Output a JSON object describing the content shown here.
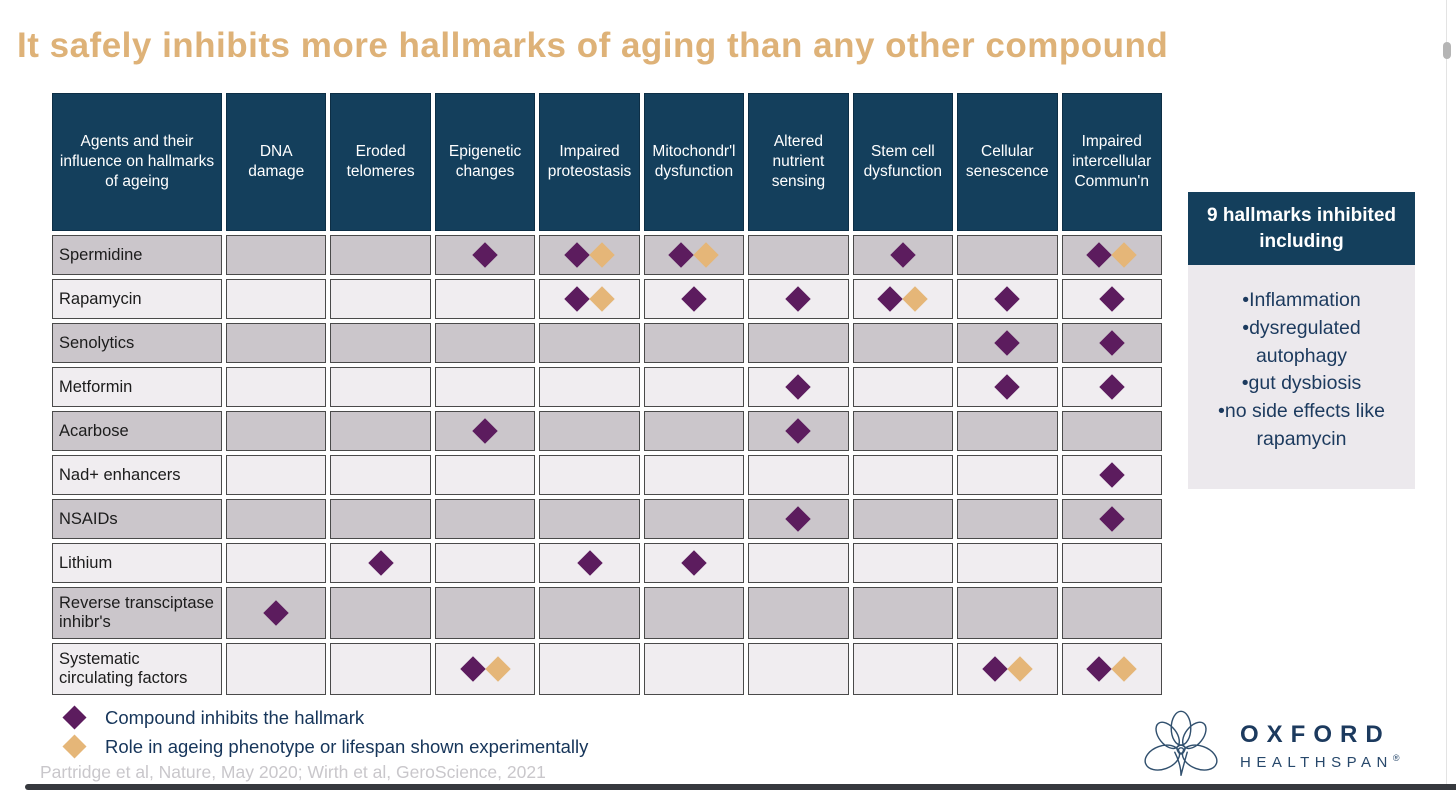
{
  "title": "It safely inhibits more hallmarks of aging than any other compound",
  "chart_data": {
    "type": "table",
    "title": "It safely inhibits more hallmarks of aging than any other compound",
    "corner_header": "Agents and their influence on hallmarks of ageing",
    "columns": [
      "DNA damage",
      "Eroded telomeres",
      "Epigenetic changes",
      "Impaired proteostasis",
      "Mitochondr'l dysfunction",
      "Altered nutrient sensing",
      "Stem cell dysfunction",
      "Cellular senescence",
      "Impaired intercellular Commun'n"
    ],
    "marker_legend": {
      "purple": "Compound inhibits the hallmark",
      "gold": "Role in ageing phenotype or lifespan shown experimentally"
    },
    "rows": [
      {
        "label": "Spermidine",
        "cells": [
          [],
          [],
          [
            "purple"
          ],
          [
            "purple",
            "gold"
          ],
          [
            "purple",
            "gold"
          ],
          [],
          [
            "purple"
          ],
          [],
          [
            "purple",
            "gold"
          ]
        ]
      },
      {
        "label": "Rapamycin",
        "cells": [
          [],
          [],
          [],
          [
            "purple",
            "gold"
          ],
          [
            "purple"
          ],
          [
            "purple"
          ],
          [
            "purple",
            "gold"
          ],
          [
            "purple"
          ],
          [
            "purple"
          ]
        ]
      },
      {
        "label": "Senolytics",
        "cells": [
          [],
          [],
          [],
          [],
          [],
          [],
          [],
          [
            "purple"
          ],
          [
            "purple"
          ]
        ]
      },
      {
        "label": "Metformin",
        "cells": [
          [],
          [],
          [],
          [],
          [],
          [
            "purple"
          ],
          [],
          [
            "purple"
          ],
          [
            "purple"
          ]
        ]
      },
      {
        "label": "Acarbose",
        "cells": [
          [],
          [],
          [
            "purple"
          ],
          [],
          [],
          [
            "purple"
          ],
          [],
          [],
          []
        ]
      },
      {
        "label": "Nad+ enhancers",
        "cells": [
          [],
          [],
          [],
          [],
          [],
          [],
          [],
          [],
          [
            "purple"
          ]
        ]
      },
      {
        "label": "NSAIDs",
        "cells": [
          [],
          [],
          [],
          [],
          [],
          [
            "purple"
          ],
          [],
          [],
          [
            "purple"
          ]
        ]
      },
      {
        "label": "Lithium",
        "cells": [
          [],
          [
            "purple"
          ],
          [],
          [
            "purple"
          ],
          [
            "purple"
          ],
          [],
          [],
          [],
          []
        ]
      },
      {
        "label": "Reverse transciptase inhibr's",
        "cells": [
          [
            "purple"
          ],
          [],
          [],
          [],
          [],
          [],
          [],
          [],
          []
        ]
      },
      {
        "label": "Systematic circulating factors",
        "cells": [
          [],
          [],
          [
            "purple",
            "gold"
          ],
          [],
          [],
          [],
          [],
          [
            "purple",
            "gold"
          ],
          [
            "purple",
            "gold"
          ]
        ]
      }
    ]
  },
  "side_panel": {
    "header": "9 hallmarks inhibited including",
    "items": [
      "Inflammation",
      "dysregulated autophagy",
      "gut dysbiosis",
      "no side effects like rapamycin"
    ],
    "bullet": "•"
  },
  "legend": [
    {
      "marker": "purple",
      "label": "Compound inhibits the hallmark"
    },
    {
      "marker": "gold",
      "label": "Role in ageing phenotype or lifespan shown experimentally"
    }
  ],
  "citation": "Partridge et al, Nature, May 2020; Wirth et al, GeroScience, 2021",
  "logo": {
    "name": "OXFORD",
    "subname": "HEALTHSPAN",
    "registered": "®"
  },
  "colors": {
    "title_gold": "#DEB278",
    "header_teal": "#143F5C",
    "diamond_purple": "#5C1C5E",
    "diamond_gold": "#E5B678",
    "row_dark": "#CBC6CB",
    "row_light": "#F0EDF0",
    "navy_text": "#1C3A5E"
  }
}
